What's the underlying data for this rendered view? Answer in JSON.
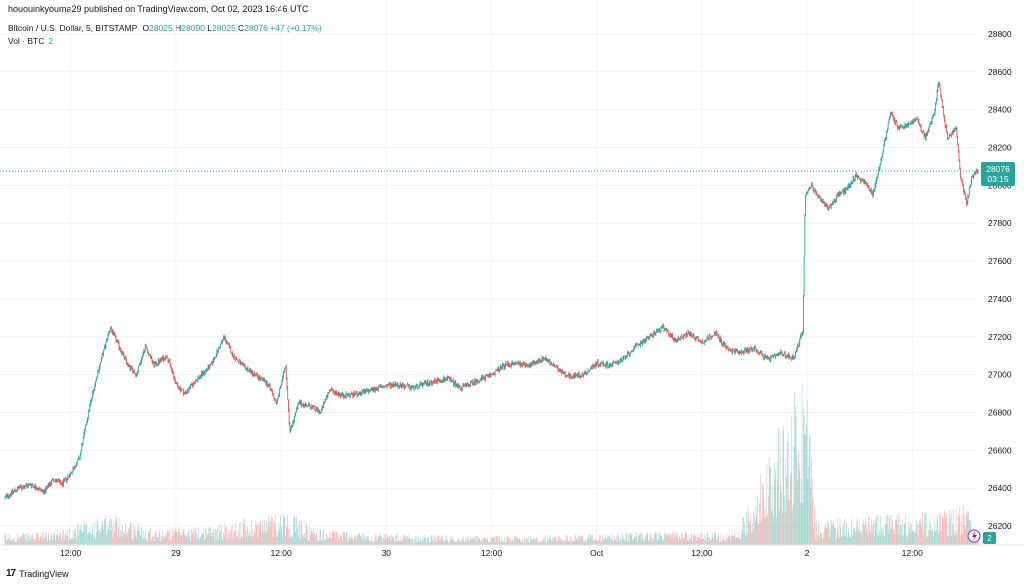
{
  "publish_line": "hououinkyouma29 published on TradingView.com, Oct 02, 2023 16:46 UTC",
  "legend": {
    "symbol": "Bitcoin / U.S. Dollar, 5, BITSTAMP",
    "open_label": "O",
    "open": "28025",
    "high_label": "H",
    "high": "28090",
    "low_label": "L",
    "low": "28025",
    "close_label": "C",
    "close": "28076",
    "change": "+47 (+0.17%)",
    "volume_label": "Vol · BTC",
    "volume": "2"
  },
  "footer": {
    "logo": "17",
    "brand": "TradingView"
  },
  "colors": {
    "up": "#26a69a",
    "down": "#ef5350",
    "grid": "#f0f3fa",
    "axis_text": "#131722"
  },
  "chart_data": {
    "type": "candlestick",
    "ylim": [
      26100,
      28900
    ],
    "y_ticks": [
      26200,
      26400,
      26600,
      26800,
      27000,
      27200,
      27400,
      27600,
      27800,
      28000,
      28200,
      28400,
      28600,
      28800
    ],
    "x_ticks": [
      "12:00",
      "29",
      "12:00",
      "30",
      "12:00",
      "Oct",
      "12:00",
      "2",
      "12:00"
    ],
    "x_tick_hours": [
      12,
      24,
      36,
      48,
      60,
      72,
      84,
      96,
      108
    ],
    "x_range_hours": [
      4.5,
      115.5
    ],
    "current_price": {
      "value": 28076,
      "label": "28076",
      "countdown": "03:15"
    },
    "volume_badge": "2",
    "price_path": [
      [
        4.5,
        26350
      ],
      [
        6,
        26400
      ],
      [
        7.5,
        26420
      ],
      [
        9,
        26380
      ],
      [
        10,
        26450
      ],
      [
        11,
        26420
      ],
      [
        12,
        26480
      ],
      [
        13,
        26560
      ],
      [
        14,
        26800
      ],
      [
        15,
        27000
      ],
      [
        16.5,
        27250
      ],
      [
        17.5,
        27150
      ],
      [
        18.5,
        27050
      ],
      [
        19.5,
        27000
      ],
      [
        20.5,
        27150
      ],
      [
        21.5,
        27050
      ],
      [
        23,
        27100
      ],
      [
        24,
        26950
      ],
      [
        25,
        26900
      ],
      [
        26.5,
        26980
      ],
      [
        28,
        27050
      ],
      [
        29.5,
        27200
      ],
      [
        30.5,
        27100
      ],
      [
        31.5,
        27050
      ],
      [
        33,
        27000
      ],
      [
        34.5,
        26950
      ],
      [
        35.5,
        26850
      ],
      [
        36.5,
        27050
      ],
      [
        37,
        26700
      ],
      [
        38,
        26850
      ],
      [
        39.5,
        26830
      ],
      [
        40.5,
        26800
      ],
      [
        41.5,
        26920
      ],
      [
        43,
        26890
      ],
      [
        45,
        26900
      ],
      [
        47,
        26930
      ],
      [
        49,
        26950
      ],
      [
        51,
        26930
      ],
      [
        53,
        26960
      ],
      [
        55,
        26980
      ],
      [
        56.5,
        26930
      ],
      [
        58,
        26960
      ],
      [
        60,
        27000
      ],
      [
        61.5,
        27050
      ],
      [
        63,
        27060
      ],
      [
        64.5,
        27050
      ],
      [
        66,
        27090
      ],
      [
        67.5,
        27030
      ],
      [
        69,
        26990
      ],
      [
        70.5,
        27000
      ],
      [
        72,
        27060
      ],
      [
        73.5,
        27050
      ],
      [
        75,
        27080
      ],
      [
        76.5,
        27150
      ],
      [
        78,
        27200
      ],
      [
        79.5,
        27250
      ],
      [
        81,
        27180
      ],
      [
        82.5,
        27220
      ],
      [
        84,
        27170
      ],
      [
        85.5,
        27220
      ],
      [
        87,
        27130
      ],
      [
        88.5,
        27120
      ],
      [
        90,
        27140
      ],
      [
        91.5,
        27080
      ],
      [
        93,
        27110
      ],
      [
        94.5,
        27090
      ],
      [
        95.5,
        27230
      ],
      [
        95.8,
        27950
      ],
      [
        96.5,
        28000
      ],
      [
        97.5,
        27920
      ],
      [
        98.5,
        27880
      ],
      [
        99.5,
        27950
      ],
      [
        100.5,
        27980
      ],
      [
        101.5,
        28050
      ],
      [
        102.5,
        28020
      ],
      [
        103.5,
        27950
      ],
      [
        104.5,
        28150
      ],
      [
        105.5,
        28380
      ],
      [
        106.5,
        28300
      ],
      [
        107.5,
        28320
      ],
      [
        108.5,
        28350
      ],
      [
        109.5,
        28250
      ],
      [
        110.5,
        28380
      ],
      [
        111,
        28550
      ],
      [
        112,
        28250
      ],
      [
        113,
        28300
      ],
      [
        113.5,
        28050
      ],
      [
        114.2,
        27900
      ],
      [
        114.8,
        28050
      ],
      [
        115.5,
        28076
      ]
    ],
    "volume_path": [
      [
        4.5,
        8
      ],
      [
        10,
        10
      ],
      [
        16.5,
        22
      ],
      [
        22,
        12
      ],
      [
        28,
        14
      ],
      [
        36.5,
        25
      ],
      [
        40,
        12
      ],
      [
        48,
        8
      ],
      [
        56,
        7
      ],
      [
        64,
        7
      ],
      [
        72,
        8
      ],
      [
        80,
        10
      ],
      [
        88,
        9
      ],
      [
        95.8,
        135
      ],
      [
        97,
        18
      ],
      [
        104.5,
        22
      ],
      [
        111,
        24
      ],
      [
        114.2,
        30
      ],
      [
        115.5,
        6
      ]
    ]
  }
}
